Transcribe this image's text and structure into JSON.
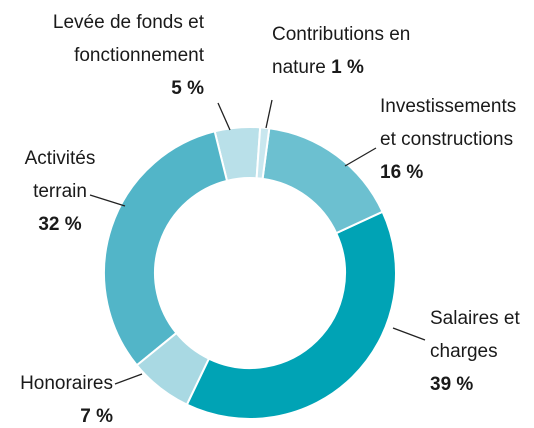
{
  "chart_data": {
    "type": "donut",
    "categories": [
      "Contributions en nature",
      "Investissements et constructions",
      "Salaires et charges",
      "Honoraires",
      "Activités terrain",
      "Levée de fonds et fonctionnement"
    ],
    "values": [
      1,
      16,
      39,
      7,
      32,
      5
    ],
    "value_labels": [
      "1 %",
      "16 %",
      "39 %",
      "7 %",
      "32 %",
      "5 %"
    ],
    "colors": [
      "#c9e7ef",
      "#6cc0d0",
      "#00a3b5",
      "#a9d9e3",
      "#52b5c8",
      "#b9e0e9"
    ]
  }
}
